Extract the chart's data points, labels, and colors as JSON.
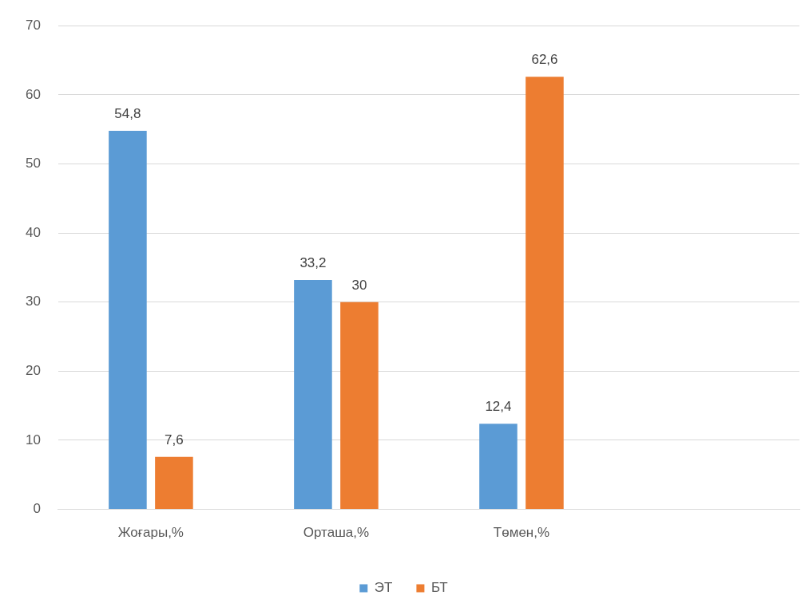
{
  "chart_data": {
    "type": "bar",
    "categories": [
      "Жоғары,%",
      "Орташа,%",
      "Төмен,%",
      null
    ],
    "series": [
      {
        "name": "ЭТ",
        "color": "#5b9bd5",
        "values": [
          54.8,
          33.2,
          12.4,
          null
        ],
        "value_labels": [
          "54,8",
          "33,2",
          "12,4",
          null
        ]
      },
      {
        "name": "БТ",
        "color": "#ed7d31",
        "values": [
          7.6,
          30,
          62.6,
          null
        ],
        "value_labels": [
          "7,6",
          "30",
          "62,6",
          null
        ]
      }
    ],
    "ylim": [
      0,
      70
    ],
    "yticks": [
      0,
      10,
      20,
      30,
      40,
      50,
      60,
      70
    ],
    "grid": "y",
    "legend": "bottom"
  }
}
